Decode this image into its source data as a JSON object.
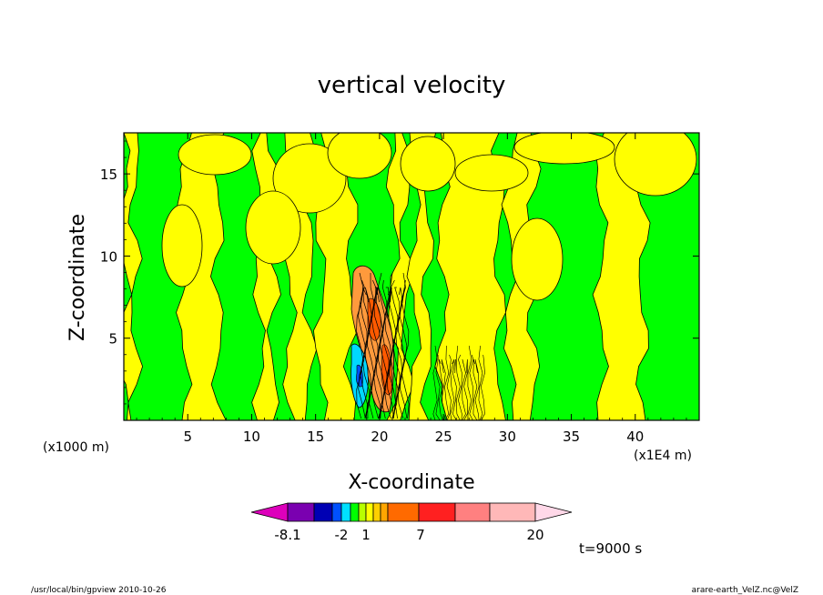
{
  "chart_data": {
    "type": "heatmap",
    "title": "vertical velocity",
    "xlabel": "X-coordinate",
    "ylabel": "Z-coordinate",
    "x_unit_left": "(x1000 m)",
    "x_unit_right": "(x1E4 m)",
    "x_range": [
      0,
      45
    ],
    "y_range": [
      0,
      17.5
    ],
    "x_ticks": [
      "5",
      "10",
      "15",
      "20",
      "25",
      "30",
      "35",
      "40"
    ],
    "x_tick_values": [
      5,
      10,
      15,
      20,
      25,
      30,
      35,
      40
    ],
    "y_ticks": [
      "5",
      "10",
      "15"
    ],
    "y_tick_values": [
      5,
      10,
      15
    ],
    "time_label": "t=9000 s",
    "colorbar": {
      "labels": [
        "-8.1",
        "-2",
        "1",
        "7",
        "20"
      ],
      "colors": [
        "#dd00bb",
        "#7a00b0",
        "#0000b4",
        "#0050ff",
        "#00e0ff",
        "#00ff00",
        "#b8ff00",
        "#ffff00",
        "#ffd000",
        "#ffa600",
        "#ff6a00",
        "#ff2020",
        "#ff8080",
        "#ffb8b8",
        "#ffd8e8"
      ]
    },
    "field_colors": {
      "negative_weak": "#00ff00",
      "positive_weak": "#ffff00",
      "positive_mid": "#ff9a3c",
      "negative_mid": "#00d8ff",
      "contour_line": "#000000"
    }
  },
  "footer": {
    "left": "/usr/local/bin/gpview   2010-10-26",
    "right": "arare-earth_VelZ.nc@VelZ"
  }
}
